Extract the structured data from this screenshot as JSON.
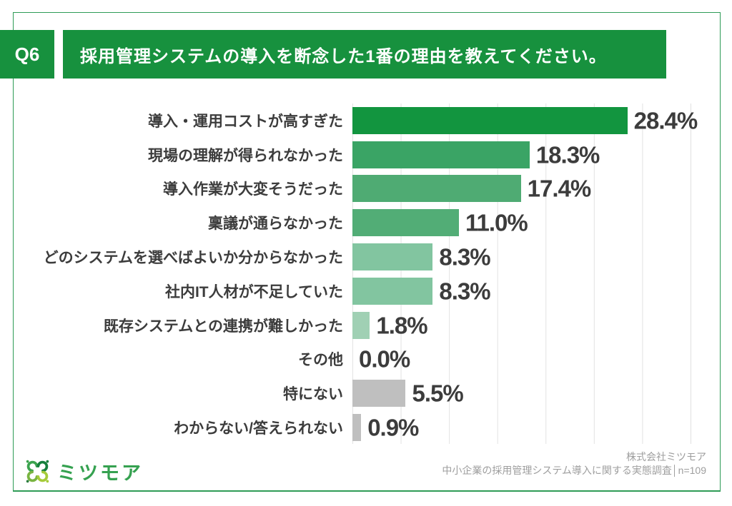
{
  "header": {
    "question_label": "Q6",
    "title": "採用管理システムの導入を断念した1番の理由を教えてください。",
    "banner_color": "#17913e"
  },
  "chart_data": {
    "type": "bar",
    "orientation": "horizontal",
    "title": "採用管理システムの導入を断念した1番の理由を教えてください。",
    "categories": [
      "導入・運用コストが高すぎた",
      "現場の理解が得られなかった",
      "導入作業が大変そうだった",
      "稟議が通らなかった",
      "どのシステムを選べばよいか分からなかった",
      "社内IT人材が不足していた",
      "既存システムとの連携が難しかった",
      "その他",
      "特にない",
      "わからない/答えられない"
    ],
    "values": [
      28.4,
      18.3,
      17.4,
      11.0,
      8.3,
      8.3,
      1.8,
      0.0,
      5.5,
      0.9
    ],
    "value_labels": [
      "28.4%",
      "18.3%",
      "17.4%",
      "11.0%",
      "8.3%",
      "8.3%",
      "1.8%",
      "0.0%",
      "5.5%",
      "0.9%"
    ],
    "bar_colors": [
      "#12953f",
      "#3aa465",
      "#4fab73",
      "#52ad76",
      "#82c5a0",
      "#82c5a0",
      "#a0d0b4",
      "#a0d0b4",
      "#bfbfbf",
      "#bfbfbf"
    ],
    "xlim": [
      0,
      35
    ],
    "gridline_interval": 5,
    "grid": true,
    "legend": "none",
    "xlabel": "",
    "ylabel": ""
  },
  "footer": {
    "logo_text": "ミツモア",
    "source_line1": "株式会社ミツモア",
    "source_line2": "中小企業の採用管理システム導入に関する実態調査│n=109"
  },
  "colors": {
    "accent_green": "#17913e",
    "gray_bar": "#bfbfbf",
    "text_dark": "#3c3c3c",
    "source_gray": "#9e9e9e",
    "gridline": "#e2e2e2",
    "panel_border": "#2e9b56"
  }
}
